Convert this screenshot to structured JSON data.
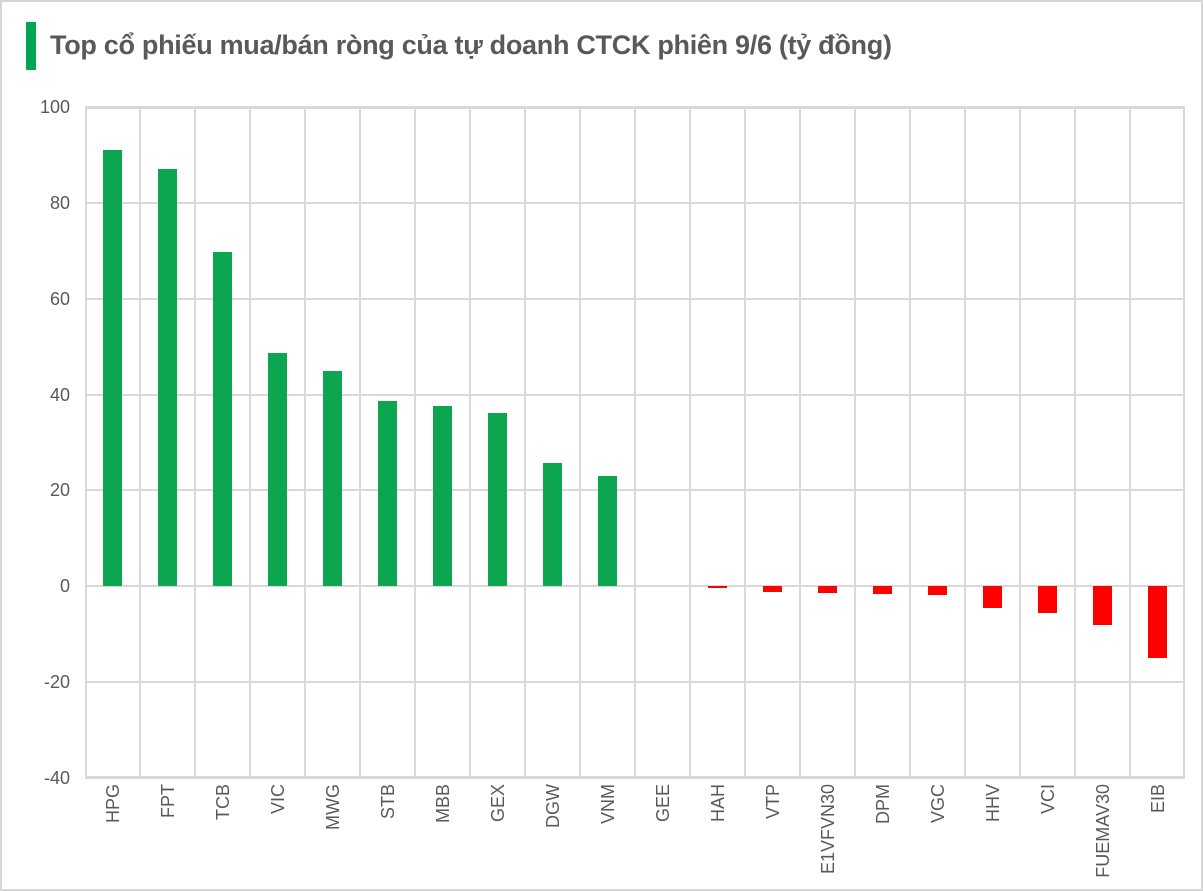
{
  "page": {
    "background": "#ffffff",
    "border_color": "#d6d6d6"
  },
  "title": {
    "accent_color": "#00a651"
  },
  "chart_data": {
    "type": "bar",
    "title": "Top cổ phiếu mua/bán ròng của tự doanh CTCK phiên 9/6 (tỷ đồng)",
    "unit": "tỷ đồng",
    "categories": [
      "HPG",
      "FPT",
      "TCB",
      "VIC",
      "MWG",
      "STB",
      "MBB",
      "GEX",
      "DGW",
      "VNM",
      "GEE",
      "HAH",
      "VTP",
      "E1VFVN30",
      "DPM",
      "VGC",
      "HHV",
      "VCI",
      "FUEMAV30",
      "EIB"
    ],
    "values": [
      91,
      87,
      69.7,
      48.6,
      45,
      38.6,
      37.7,
      36.2,
      25.8,
      23,
      0,
      -0.4,
      -1.1,
      -1.4,
      -1.7,
      -1.9,
      -4.5,
      -5.6,
      -8,
      -15
    ],
    "xlabel": "",
    "ylabel": "",
    "ylim": [
      -40,
      100
    ],
    "yticks": [
      100,
      80,
      60,
      40,
      20,
      0,
      -20,
      -40
    ],
    "grid": true,
    "legend": "none",
    "positive_color": "#0ca650",
    "negative_color": "#ff0000",
    "gridline_color": "#d9d9d9",
    "axis_text_color": "#595959",
    "title_text_color": "#595959"
  }
}
